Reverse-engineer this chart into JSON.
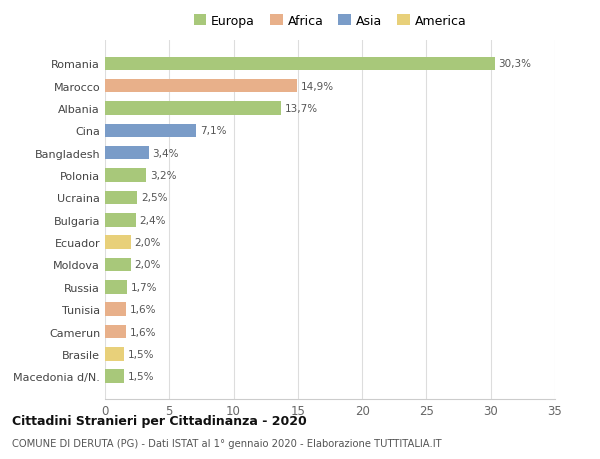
{
  "categories": [
    "Romania",
    "Marocco",
    "Albania",
    "Cina",
    "Bangladesh",
    "Polonia",
    "Ucraina",
    "Bulgaria",
    "Ecuador",
    "Moldova",
    "Russia",
    "Tunisia",
    "Camerun",
    "Brasile",
    "Macedonia d/N."
  ],
  "values": [
    30.3,
    14.9,
    13.7,
    7.1,
    3.4,
    3.2,
    2.5,
    2.4,
    2.0,
    2.0,
    1.7,
    1.6,
    1.6,
    1.5,
    1.5
  ],
  "labels": [
    "30,3%",
    "14,9%",
    "13,7%",
    "7,1%",
    "3,4%",
    "3,2%",
    "2,5%",
    "2,4%",
    "2,0%",
    "2,0%",
    "1,7%",
    "1,6%",
    "1,6%",
    "1,5%",
    "1,5%"
  ],
  "colors": [
    "#a8c87a",
    "#e8b08a",
    "#a8c87a",
    "#7a9cc8",
    "#7a9cc8",
    "#a8c87a",
    "#a8c87a",
    "#a8c87a",
    "#e8d07a",
    "#a8c87a",
    "#a8c87a",
    "#e8b08a",
    "#e8b08a",
    "#e8d07a",
    "#a8c87a"
  ],
  "legend": {
    "Europa": "#a8c87a",
    "Africa": "#e8b08a",
    "Asia": "#7a9cc8",
    "America": "#e8d07a"
  },
  "xlim": [
    0,
    35
  ],
  "xticks": [
    0,
    5,
    10,
    15,
    20,
    25,
    30,
    35
  ],
  "title": "Cittadini Stranieri per Cittadinanza - 2020",
  "subtitle": "COMUNE DI DERUTA (PG) - Dati ISTAT al 1° gennaio 2020 - Elaborazione TUTTITALIA.IT",
  "background_color": "#ffffff",
  "grid_color": "#dddddd",
  "bar_height": 0.6
}
